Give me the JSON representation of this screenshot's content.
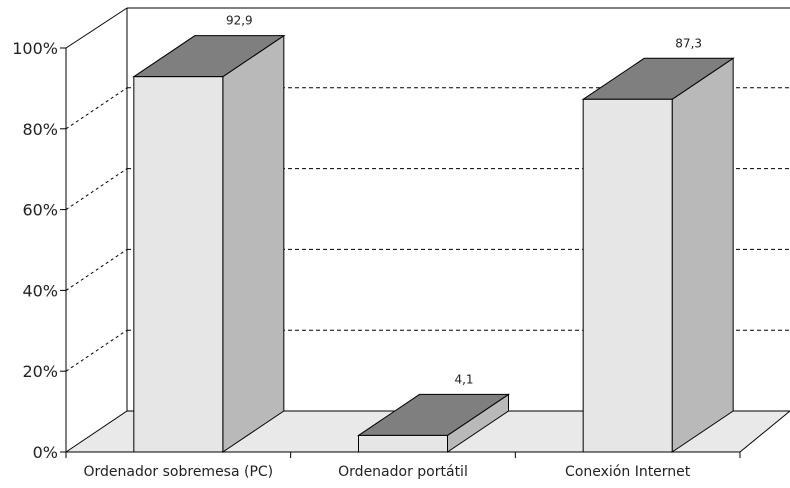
{
  "chart_data": {
    "type": "bar",
    "categories": [
      "Ordenador sobremesa (PC)",
      "Ordenador portátil",
      "Conexión Internet"
    ],
    "values": [
      92.9,
      4.1,
      87.3
    ],
    "data_labels": [
      "92,9",
      "4,1",
      "87,3"
    ],
    "yticks": [
      "0%",
      "20%",
      "40%",
      "60%",
      "80%",
      "100%"
    ],
    "ylim": [
      0,
      100
    ],
    "grid": true,
    "style": "3d",
    "colors": {
      "front": "#e6e6e6",
      "side": "#b9b9b9",
      "top": "#7f7f7f",
      "floor": "#e9e9e9"
    }
  }
}
